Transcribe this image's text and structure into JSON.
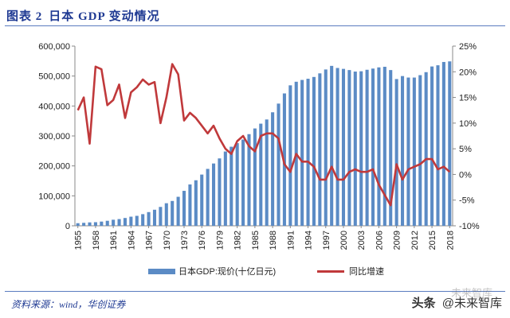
{
  "header": {
    "figure_label": "图表 2",
    "title": "日本 GDP 变动情况"
  },
  "footer": {
    "source": "资料来源：wind，华创证券"
  },
  "watermark": {
    "platform": "头条",
    "account": "@未来智库",
    "ghost_text": "未来智库"
  },
  "colors": {
    "bar": "#5b8bc5",
    "line": "#c0393b",
    "header": "#1f3a93"
  },
  "chart_data": {
    "type": "bar",
    "title": "",
    "xlabel": "",
    "ylabel": "",
    "ylim": [
      0,
      600000
    ],
    "y2lim": [
      -10,
      25
    ],
    "y_ticks": [
      "0",
      "100,000",
      "200,000",
      "300,000",
      "400,000",
      "500,000",
      "600,000"
    ],
    "y2_ticks": [
      "-10%",
      "-5%",
      "0%",
      "5%",
      "10%",
      "15%",
      "20%",
      "25%"
    ],
    "x_tick_labels": [
      "1955",
      "1958",
      "1961",
      "1964",
      "1967",
      "1970",
      "1973",
      "1976",
      "1979",
      "1982",
      "1985",
      "1988",
      "1991",
      "1994",
      "1997",
      "2000",
      "2003",
      "2006",
      "2009",
      "2012",
      "2015",
      "2018"
    ],
    "legend_position": "bottom",
    "grid": false,
    "categories": [
      "1955",
      "1956",
      "1957",
      "1958",
      "1959",
      "1960",
      "1961",
      "1962",
      "1963",
      "1964",
      "1965",
      "1966",
      "1967",
      "1968",
      "1969",
      "1970",
      "1971",
      "1972",
      "1973",
      "1974",
      "1975",
      "1976",
      "1977",
      "1978",
      "1979",
      "1980",
      "1981",
      "1982",
      "1983",
      "1984",
      "1985",
      "1986",
      "1987",
      "1988",
      "1989",
      "1990",
      "1991",
      "1992",
      "1993",
      "1994",
      "1995",
      "1996",
      "1997",
      "1998",
      "1999",
      "2000",
      "2001",
      "2002",
      "2003",
      "2004",
      "2005",
      "2006",
      "2007",
      "2008",
      "2009",
      "2010",
      "2011",
      "2012",
      "2013",
      "2014",
      "2015",
      "2016",
      "2017",
      "2018"
    ],
    "series": [
      {
        "name": "日本GDP:现价(十亿日元)",
        "type": "bar",
        "axis": "left",
        "values": [
          8600,
          9900,
          11300,
          12000,
          14000,
          16700,
          20200,
          22400,
          26000,
          30400,
          33200,
          38800,
          45700,
          53600,
          63000,
          75300,
          82900,
          96800,
          116700,
          138000,
          152000,
          171000,
          190000,
          208000,
          225000,
          248000,
          264000,
          276000,
          288000,
          306000,
          325000,
          341000,
          355000,
          379000,
          408000,
          442000,
          469000,
          481000,
          487000,
          491000,
          497000,
          509000,
          522000,
          534000,
          527000,
          524000,
          520000,
          515000,
          516000,
          521000,
          525000,
          529000,
          531000,
          520000,
          490000,
          500000,
          495000,
          495000,
          503000,
          513000,
          532000,
          536000,
          547000,
          549000
        ]
      },
      {
        "name": "同比增速",
        "type": "line",
        "axis": "right",
        "values": [
          12.5,
          15.0,
          6.0,
          21.0,
          20.5,
          13.5,
          14.5,
          17.5,
          11.0,
          16.0,
          17.0,
          18.5,
          17.5,
          18.0,
          10.0,
          15.0,
          21.5,
          19.5,
          10.5,
          12.0,
          11.0,
          9.5,
          8.0,
          9.5,
          7.0,
          5.0,
          4.0,
          6.5,
          7.5,
          5.5,
          4.5,
          7.5,
          8.0,
          8.0,
          7.0,
          2.0,
          0.5,
          4.0,
          2.5,
          2.5,
          1.5,
          -1.0,
          -1.0,
          1.5,
          -1.0,
          -1.0,
          0.5,
          1.0,
          0.5,
          0.5,
          1.0,
          -2.0,
          -4.0,
          -6.0,
          2.0,
          -1.0,
          1.0,
          1.5,
          2.0,
          3.0,
          3.0,
          1.0,
          1.5,
          0.5
        ]
      }
    ]
  }
}
